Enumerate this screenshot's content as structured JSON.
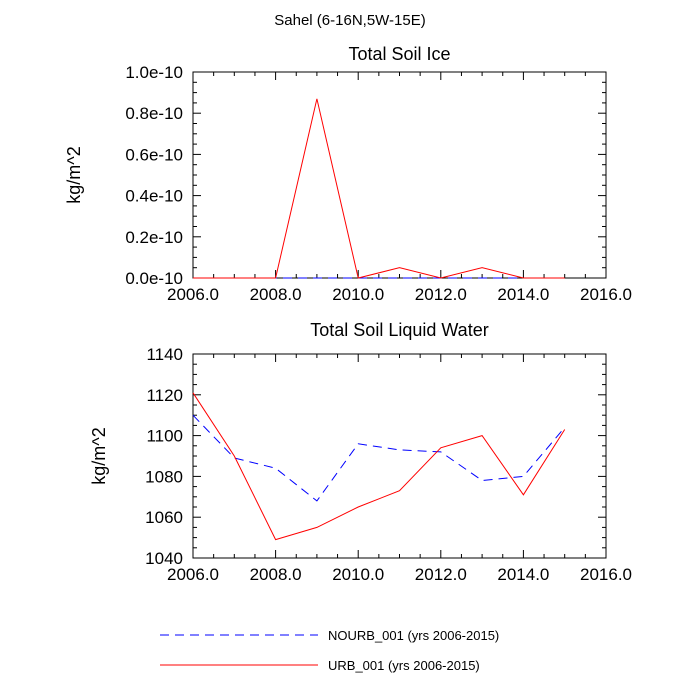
{
  "figure": {
    "title": "Sahel (6-16N,5W-15E)"
  },
  "legend": {
    "position": "bottom",
    "entries": [
      {
        "name": "NOURB_001 (yrs 2006-2015)",
        "color": "#0000ff",
        "dash": "dashed"
      },
      {
        "name": "URB_001 (yrs 2006-2015)",
        "color": "#ff0000",
        "dash": "solid"
      }
    ]
  },
  "chart_data": [
    {
      "type": "line",
      "title": "Total Soil Ice",
      "xlabel": "",
      "ylabel": "kg/m^2",
      "xlim": [
        2006,
        2016
      ],
      "ylim": [
        0,
        1e-10
      ],
      "x_ticks": [
        2006,
        2008,
        2010,
        2012,
        2014,
        2016
      ],
      "x_tick_labels": [
        "2006.0",
        "2008.0",
        "2010.0",
        "2012.0",
        "2014.0",
        "2016.0"
      ],
      "y_ticks": [
        0,
        2e-11,
        4e-11,
        6e-11,
        8e-11,
        1e-10
      ],
      "y_tick_labels": [
        "0.0e-10",
        "0.2e-10",
        "0.4e-10",
        "0.6e-10",
        "0.8e-10",
        "1.0e-10"
      ],
      "x": [
        2006,
        2007,
        2008,
        2009,
        2010,
        2011,
        2012,
        2013,
        2014,
        2015
      ],
      "series": [
        {
          "name": "NOURB_001 (yrs 2006-2015)",
          "color": "#0000ff",
          "dash": "dashed",
          "values": [
            0,
            0,
            0,
            0,
            0,
            0,
            0,
            0,
            0,
            0
          ]
        },
        {
          "name": "URB_001 (yrs 2006-2015)",
          "color": "#ff0000",
          "dash": "solid",
          "values": [
            0,
            0,
            0,
            8.7e-11,
            0,
            5e-12,
            0,
            5e-12,
            0,
            0
          ]
        }
      ]
    },
    {
      "type": "line",
      "title": "Total Soil Liquid Water",
      "xlabel": "",
      "ylabel": "kg/m^2",
      "xlim": [
        2006,
        2016
      ],
      "ylim": [
        1040,
        1140
      ],
      "x_ticks": [
        2006,
        2008,
        2010,
        2012,
        2014,
        2016
      ],
      "x_tick_labels": [
        "2006.0",
        "2008.0",
        "2010.0",
        "2012.0",
        "2014.0",
        "2016.0"
      ],
      "y_ticks": [
        1040,
        1060,
        1080,
        1100,
        1120,
        1140
      ],
      "y_tick_labels": [
        "1040",
        "1060",
        "1080",
        "1100",
        "1120",
        "1140"
      ],
      "x": [
        2006,
        2007,
        2008,
        2009,
        2010,
        2011,
        2012,
        2013,
        2014,
        2015
      ],
      "series": [
        {
          "name": "NOURB_001 (yrs 2006-2015)",
          "color": "#0000ff",
          "dash": "dashed",
          "values": [
            1110,
            1089,
            1084,
            1068,
            1096,
            1093,
            1092,
            1078,
            1080,
            1104
          ]
        },
        {
          "name": "URB_001 (yrs 2006-2015)",
          "color": "#ff0000",
          "dash": "solid",
          "values": [
            1121,
            1090,
            1049,
            1055,
            1065,
            1073,
            1094,
            1100,
            1071,
            1103
          ]
        }
      ]
    }
  ]
}
